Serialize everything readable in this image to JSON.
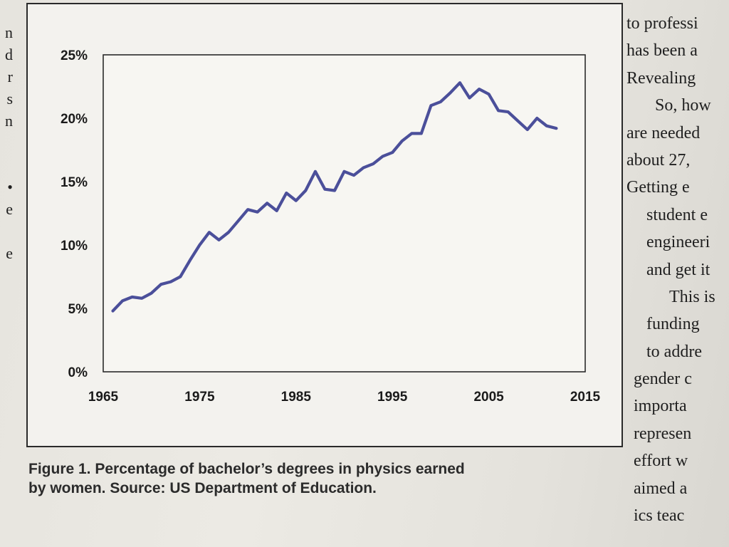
{
  "left_column": {
    "fragments": [
      "n",
      "d",
      "r",
      "s",
      "n",
      "",
      "",
      "•",
      "e",
      "",
      "e"
    ]
  },
  "right_column": {
    "lines": [
      "to professi",
      "has been a",
      "Revealing",
      "So, how",
      "are needed",
      "about 27,",
      "Getting e",
      "student e",
      "engineeri",
      "and get it",
      "This is",
      "funding",
      "to addre",
      "gender c",
      "importa",
      "represen",
      "effort w",
      "aimed a",
      "ics teac"
    ]
  },
  "caption": {
    "line1": "Figure 1. Percentage of bachelor’s degrees in physics earned",
    "line2": "by women. Source: US Department of Education."
  },
  "chart_data": {
    "type": "line",
    "title": "",
    "xlabel": "",
    "ylabel": "",
    "xlim": [
      1965,
      2015
    ],
    "ylim": [
      0,
      25
    ],
    "x_ticks": [
      1965,
      1975,
      1985,
      1995,
      2005,
      2015
    ],
    "x_tick_labels": [
      "1965",
      "1975",
      "1985",
      "1995",
      "2005",
      "2015"
    ],
    "y_ticks": [
      0,
      5,
      10,
      15,
      20,
      25
    ],
    "y_tick_labels": [
      "0%",
      "5%",
      "10%",
      "15%",
      "20%",
      "25%"
    ],
    "grid": true,
    "series": [
      {
        "name": "",
        "color": "#4b4f9a",
        "x": [
          1966,
          1967,
          1968,
          1969,
          1970,
          1971,
          1972,
          1973,
          1974,
          1975,
          1976,
          1977,
          1978,
          1979,
          1980,
          1981,
          1982,
          1983,
          1984,
          1985,
          1986,
          1987,
          1988,
          1989,
          1990,
          1991,
          1992,
          1993,
          1994,
          1995,
          1996,
          1997,
          1998,
          1999,
          2000,
          2001,
          2002,
          2003,
          2004,
          2005,
          2006,
          2007,
          2008,
          2009,
          2010,
          2011,
          2012
        ],
        "y": [
          4.8,
          5.6,
          5.9,
          5.8,
          6.2,
          6.9,
          7.1,
          7.5,
          8.8,
          10.0,
          11.0,
          10.4,
          11.0,
          11.9,
          12.8,
          12.6,
          13.3,
          12.7,
          14.1,
          13.5,
          14.3,
          15.8,
          14.4,
          14.3,
          15.8,
          15.5,
          16.1,
          16.4,
          17.0,
          17.3,
          18.2,
          18.8,
          18.8,
          21.0,
          21.3,
          22.0,
          22.8,
          21.6,
          22.3,
          21.9,
          20.6,
          20.5,
          19.8,
          19.1,
          20.0,
          19.4,
          19.2
        ]
      }
    ]
  }
}
